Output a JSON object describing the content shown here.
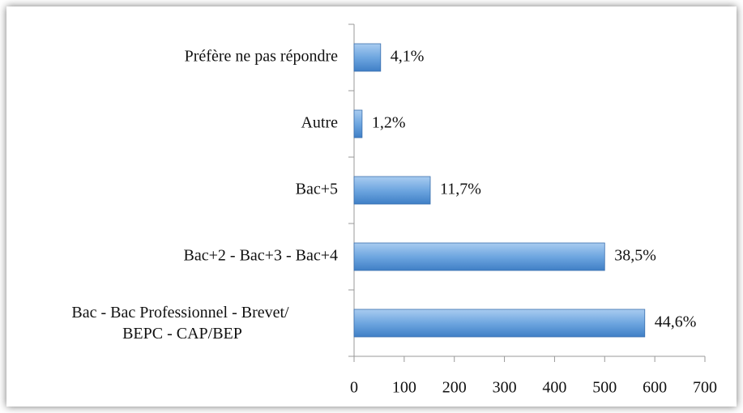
{
  "chart_data": {
    "type": "hbar",
    "categories": [
      "Préfère ne pas répondre",
      "Autre",
      "Bac+5",
      "Bac+2 - Bac+3 - Bac+4",
      "Bac - Bac Professionnel - Brevet/ BEPC - CAP/BEP"
    ],
    "values": [
      53,
      16,
      152,
      500,
      580
    ],
    "percent_labels": [
      "4,1%",
      "1,2%",
      "11,7%",
      "38,5%",
      "44,6%"
    ],
    "color": "#5b9bd5",
    "xlim": [
      0,
      700
    ],
    "xticks": [
      0,
      100,
      200,
      300,
      400,
      500,
      600,
      700
    ]
  }
}
